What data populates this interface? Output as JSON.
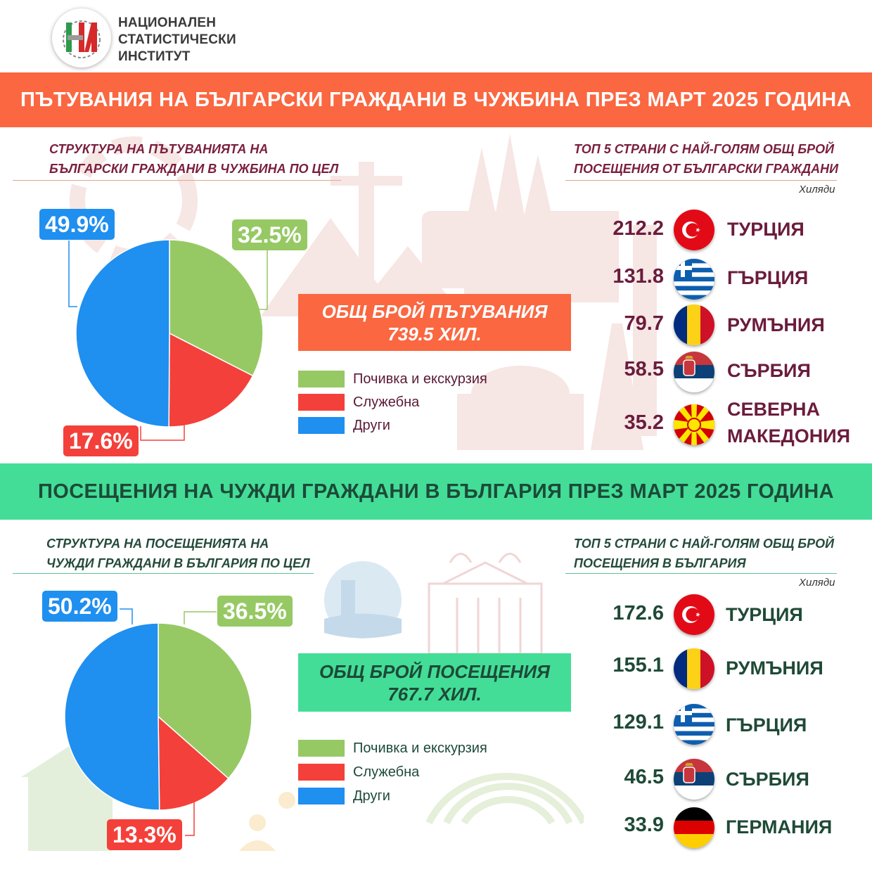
{
  "header": {
    "logo_text": "НИ",
    "institute_lines": [
      "НАЦИОНАЛЕН",
      "СТАТИСТИЧЕСКИ",
      "ИНСТИТУТ"
    ]
  },
  "colors": {
    "orange": "#fa6741",
    "green": "#43dd98",
    "leisure": "#96c964",
    "business": "#f4403a",
    "other": "#1f8ff0"
  },
  "section1": {
    "banner": "ПЪТУВАНИЯ НА БЪЛГАРСКИ ГРАЖДАНИ В ЧУЖБИНА ПРЕЗ МАРТ 2025 ГОДИНА",
    "pie_title": [
      "СТРУКТУРА НА ПЪТУВАНИЯТА НА",
      "БЪЛГАРСКИ ГРАЖДАНИ В ЧУЖБИНА ПО ЦЕЛ"
    ],
    "top_title": [
      "ТОП 5 СТРАНИ С НАЙ-ГОЛЯМ ОБЩ БРОЙ",
      "ПОСЕЩЕНИЯ ОТ БЪЛГАРСКИ ГРАЖДАНИ"
    ],
    "unit": "Хиляди",
    "total": [
      "ОБЩ БРОЙ ПЪТУВАНИЯ",
      "739.5 ХИЛ."
    ],
    "legend": [
      "Почивка и екскурзия",
      "Служебна",
      "Други"
    ],
    "countries": [
      {
        "value": "212.2",
        "name": "ТУРЦИЯ",
        "flag": "turkey-flag-icon"
      },
      {
        "value": "131.8",
        "name": "ГЪРЦИЯ",
        "flag": "greece-flag-icon"
      },
      {
        "value": "79.7",
        "name": "РУМЪНИЯ",
        "flag": "romania-flag-icon"
      },
      {
        "value": "58.5",
        "name": "СЪРБИЯ",
        "flag": "serbia-flag-icon"
      },
      {
        "value": "35.2",
        "name": [
          "СЕВЕРНА",
          "МАКЕДОНИЯ"
        ],
        "flag": "north-macedonia-flag-icon"
      }
    ]
  },
  "section2": {
    "banner": "ПОСЕЩЕНИЯ НА ЧУЖДИ ГРАЖДАНИ В БЪЛГАРИЯ ПРЕЗ МАРТ 2025 ГОДИНА",
    "pie_title": [
      "СТРУКТУРА НА ПОСЕЩЕНИЯТА НА",
      "ЧУЖДИ ГРАЖДАНИ В БЪЛГАРИЯ ПО ЦЕЛ"
    ],
    "top_title": [
      "ТОП 5 СТРАНИ С НАЙ-ГОЛЯМ ОБЩ БРОЙ",
      "ПОСЕЩЕНИЯ В БЪЛГАРИЯ"
    ],
    "unit": "Хиляди",
    "total": [
      "ОБЩ БРОЙ ПОСЕЩЕНИЯ",
      "767.7 ХИЛ."
    ],
    "legend": [
      "Почивка и екскурзия",
      "Служебна",
      "Други"
    ],
    "countries": [
      {
        "value": "172.6",
        "name": "ТУРЦИЯ",
        "flag": "turkey-flag-icon"
      },
      {
        "value": "155.1",
        "name": "РУМЪНИЯ",
        "flag": "romania-flag-icon"
      },
      {
        "value": "129.1",
        "name": "ГЪРЦИЯ",
        "flag": "greece-flag-icon"
      },
      {
        "value": "46.5",
        "name": "СЪРБИЯ",
        "flag": "serbia-flag-icon"
      },
      {
        "value": "33.9",
        "name": "ГЕРМАНИЯ",
        "flag": "germany-flag-icon"
      }
    ]
  },
  "chart_data": [
    {
      "type": "pie",
      "title": "СТРУКТУРА НА ПЪТУВАНИЯТА НА БЪЛГАРСКИ ГРАЖДАНИ В ЧУЖБИНА ПО ЦЕЛ",
      "categories": [
        "Почивка и екскурзия",
        "Служебна",
        "Други"
      ],
      "values": [
        32.5,
        17.6,
        49.9
      ],
      "labels": [
        "32.5%",
        "17.6%",
        "49.9%"
      ]
    },
    {
      "type": "pie",
      "title": "СТРУКТУРА НА ПОСЕЩЕНИЯТА НА ЧУЖДИ ГРАЖДАНИ В БЪЛГАРИЯ ПО ЦЕЛ",
      "categories": [
        "Почивка и екскурзия",
        "Служебна",
        "Други"
      ],
      "values": [
        36.5,
        13.3,
        50.2
      ],
      "labels": [
        "36.5%",
        "13.3%",
        "50.2%"
      ]
    },
    {
      "type": "bar",
      "title": "ТОП 5 СТРАНИ С НАЙ-ГОЛЯМ ОБЩ БРОЙ ПОСЕЩЕНИЯ ОТ БЪЛГАРСКИ ГРАЖДАНИ",
      "ylabel": "Хиляди",
      "categories": [
        "ТУРЦИЯ",
        "ГЪРЦИЯ",
        "РУМЪНИЯ",
        "СЪРБИЯ",
        "СЕВЕРНА МАКЕДОНИЯ"
      ],
      "values": [
        212.2,
        131.8,
        79.7,
        58.5,
        35.2
      ]
    },
    {
      "type": "bar",
      "title": "ТОП 5 СТРАНИ С НАЙ-ГОЛЯМ ОБЩ БРОЙ ПОСЕЩЕНИЯ В БЪЛГАРИЯ",
      "ylabel": "Хиляди",
      "categories": [
        "ТУРЦИЯ",
        "РУМЪНИЯ",
        "ГЪРЦИЯ",
        "СЪРБИЯ",
        "ГЕРМАНИЯ"
      ],
      "values": [
        172.6,
        155.1,
        129.1,
        46.5,
        33.9
      ]
    }
  ]
}
